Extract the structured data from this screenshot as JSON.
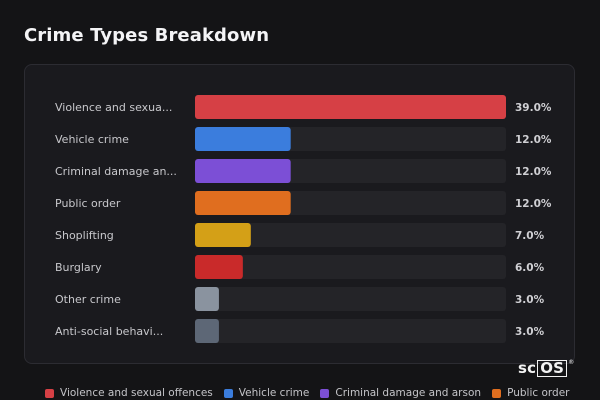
{
  "page": {
    "title": "Crime Types Breakdown",
    "watermark": {
      "prefix": "sc",
      "boxed": "OS",
      "mark": "®"
    }
  },
  "chart_data": {
    "type": "bar",
    "orientation": "horizontal",
    "title": "Crime Types Breakdown",
    "xlim": [
      0,
      39
    ],
    "categories": [
      "Violence and sexua...",
      "Vehicle crime",
      "Criminal damage an...",
      "Public order",
      "Shoplifting",
      "Burglary",
      "Other crime",
      "Anti-social behavi..."
    ],
    "values": [
      39.0,
      12.0,
      12.0,
      12.0,
      7.0,
      6.0,
      3.0,
      3.0
    ],
    "value_labels": [
      "39.0%",
      "12.0%",
      "12.0%",
      "12.0%",
      "7.0%",
      "6.0%",
      "3.0%",
      "3.0%"
    ],
    "colors": [
      "#d64045",
      "#3b7ddd",
      "#7c4fd6",
      "#e06e1f",
      "#d4a017",
      "#c92a2a",
      "#8a939f",
      "#5d6776"
    ],
    "track_color": "#242428",
    "legend": {
      "placement": "bottom",
      "entries": [
        {
          "label": "Violence and sexual offences",
          "color": "#d64045"
        },
        {
          "label": "Vehicle crime",
          "color": "#3b7ddd"
        },
        {
          "label": "Criminal damage and arson",
          "color": "#7c4fd6"
        },
        {
          "label": "Public order",
          "color": "#e06e1f"
        }
      ]
    }
  }
}
